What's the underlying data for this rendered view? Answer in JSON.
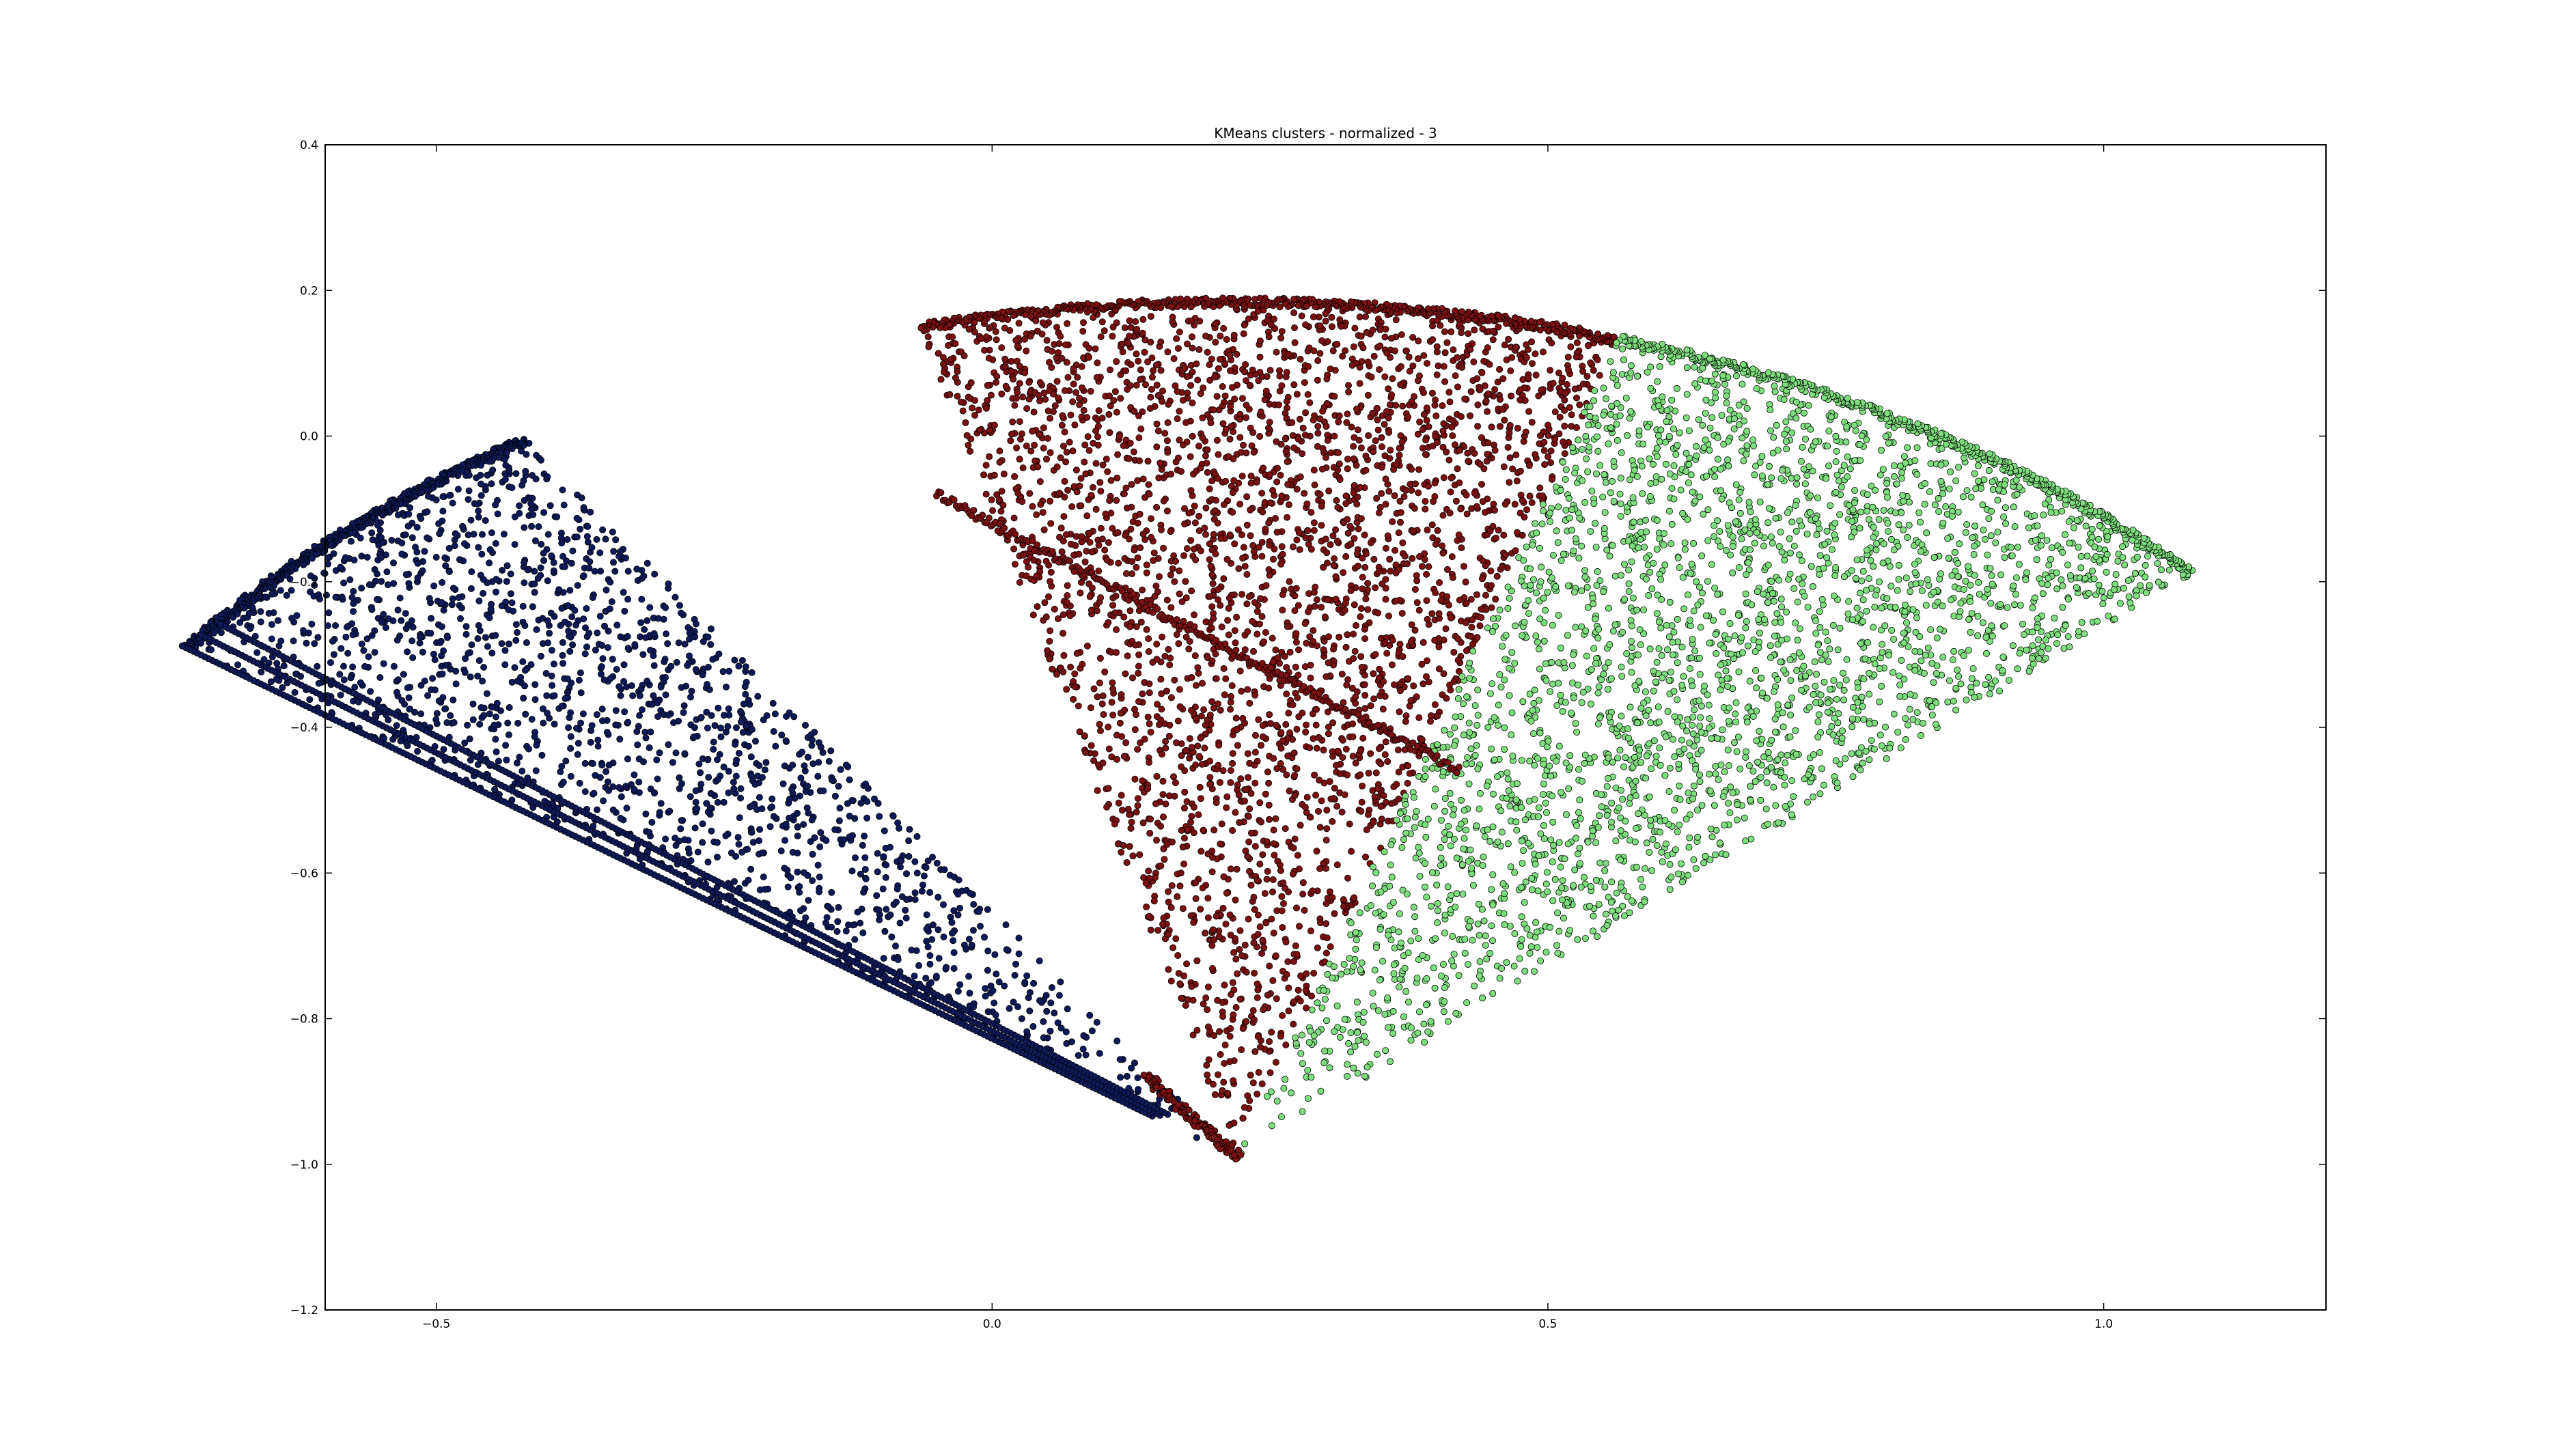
{
  "chart_data": {
    "type": "scatter",
    "title": "KMeans clusters - normalized - 3",
    "xlabel": "",
    "ylabel": "",
    "xlim": [
      -0.6,
      1.2
    ],
    "ylim": [
      -1.2,
      0.4
    ],
    "xticks": [
      -0.5,
      0.0,
      0.5,
      1.0
    ],
    "xtick_labels": [
      "−0.5",
      "0.0",
      "0.5",
      "1.0"
    ],
    "yticks": [
      0.4,
      0.2,
      0.0,
      -0.2,
      -0.4,
      -0.6,
      -0.8,
      -1.0,
      -1.2
    ],
    "ytick_labels": [
      "0.4",
      "0.2",
      "0.0",
      "−0.2",
      "−0.4",
      "−0.6",
      "−0.8",
      "−1.0",
      "−1.2"
    ],
    "grid": false,
    "legend": "none",
    "arc_center": [
      0.22,
      -0.99
    ],
    "arc_radius": 1.18,
    "series": [
      {
        "color": "#0d1a57",
        "edge_color": "#000000",
        "angle_range_deg": [
          123.0,
          143.5
        ],
        "boundary_points": [
          {
            "x": -0.4,
            "y": -0.02
          },
          {
            "x": -0.1,
            "y": 0.14
          },
          {
            "x": 0.14,
            "y": -0.88
          }
        ]
      },
      {
        "color": "#7a1010",
        "edge_color": "#000000",
        "angle_range_deg": [
          73.0,
          104.0
        ],
        "boundary_points": [
          {
            "x": -0.1,
            "y": 0.14
          },
          {
            "x": 0.55,
            "y": 0.13
          },
          {
            "x": 0.22,
            "y": -0.99
          }
        ]
      },
      {
        "color": "#7ede7e",
        "edge_color": "#000000",
        "angle_range_deg": [
          43.0,
          73.0
        ],
        "boundary_points": [
          {
            "x": 0.55,
            "y": 0.13
          },
          {
            "x": 1.0,
            "y": -0.18
          },
          {
            "x": 0.27,
            "y": -0.95
          }
        ]
      }
    ]
  }
}
